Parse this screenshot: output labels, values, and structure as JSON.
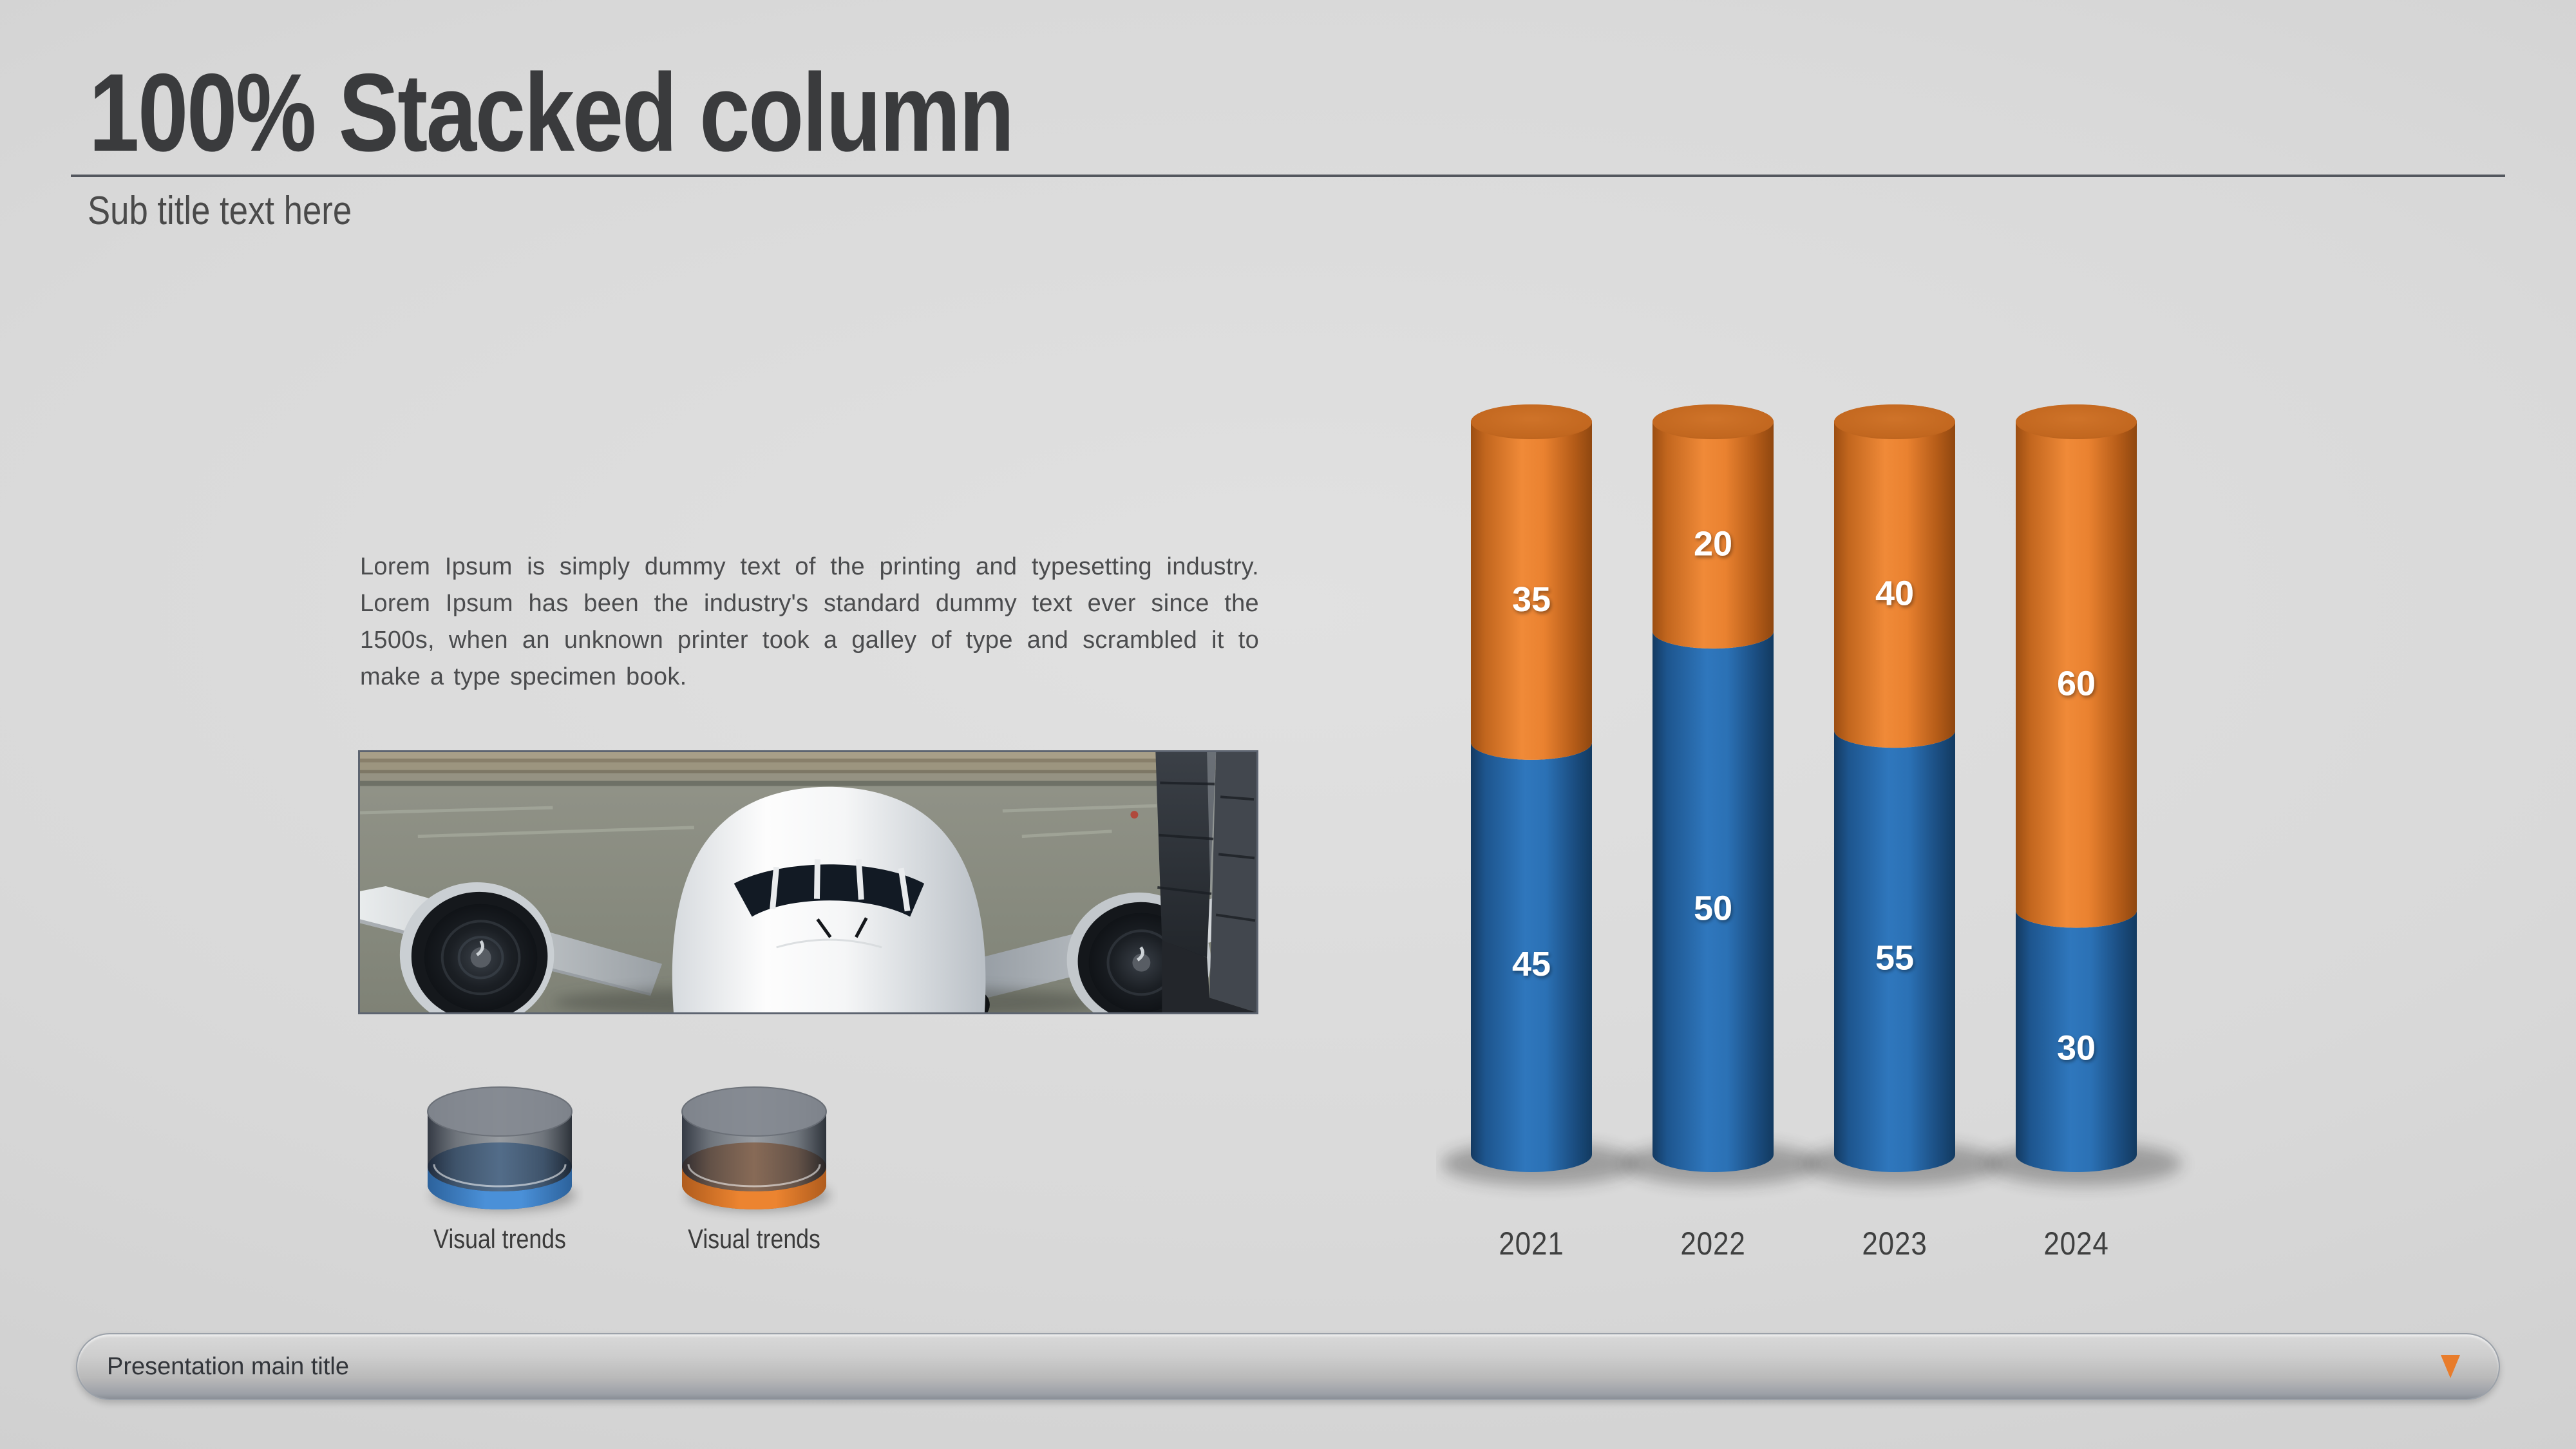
{
  "slide": {
    "title": "100% Stacked column",
    "subtitle": "Sub title text here",
    "body_text": "Lorem Ipsum is simply dummy text of the printing and typesetting industry. Lorem Ipsum has been the industry's standard dummy text ever since the 1500s, when an unknown printer took a galley of type and scrambled it to make a type specimen book.",
    "footer": {
      "label": "Presentation main title",
      "dropdown_icon": "triangle-down-icon",
      "accent_color": "#e87c2b"
    }
  },
  "legend": [
    {
      "label": "Visual trends",
      "series": "blue",
      "color": "#4a90d8",
      "color_dark": "#2c629c"
    },
    {
      "label": "Visual trends",
      "series": "orange",
      "color": "#ec8430",
      "color_dark": "#b05c1d"
    }
  ],
  "chart_data": {
    "type": "bar",
    "subtype": "100-percent-stacked-3d-cylinders",
    "title": "100% Stacked column",
    "categories": [
      "2021",
      "2022",
      "2023",
      "2024"
    ],
    "series": [
      {
        "name": "bottom segment (blue)",
        "color": "#2b71b5",
        "values": [
          45,
          50,
          55,
          30
        ]
      },
      {
        "name": "top segment (orange)",
        "color": "#e87f2e",
        "values": [
          35,
          20,
          40,
          60
        ]
      }
    ],
    "value_label_color": "#ffffff",
    "category_label_color": "#3f4040",
    "grid": false,
    "legend_position": "bottom-left",
    "note": "all columns share equal full height; segment heights proportional to value/column-sum"
  }
}
